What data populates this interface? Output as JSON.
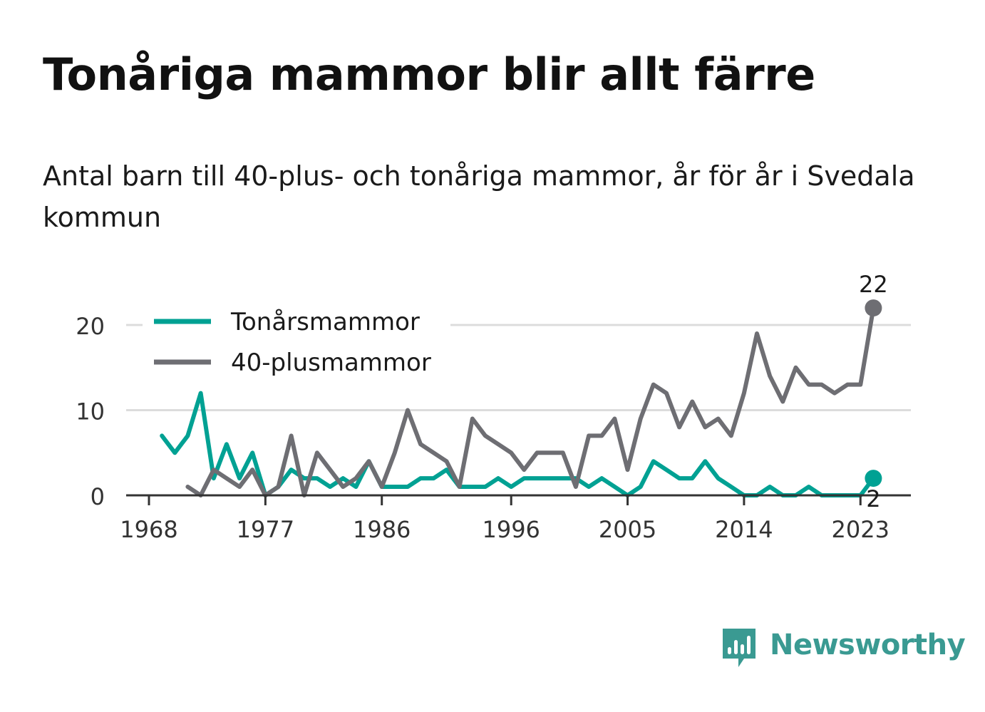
{
  "title": "Tonåriga mammor blir allt färre",
  "subtitle": "Antal barn till 40-plus- och tonåriga mammor, år för år i Svedala kommun",
  "brand": {
    "name": "Newsworthy",
    "logo_icon": "bar-chart-speech-bubble-icon",
    "color": "#3a9a92"
  },
  "chart_data": {
    "type": "line",
    "title": "Tonåriga mammor blir allt färre",
    "subtitle": "Antal barn till 40-plus- och tonåriga mammor, år för år i Svedala kommun",
    "xlabel": "",
    "ylabel": "",
    "xlim": [
      1968,
      2025
    ],
    "ylim": [
      0,
      22
    ],
    "x_ticks": [
      1968,
      1977,
      1986,
      1996,
      2005,
      2014,
      2023
    ],
    "y_ticks": [
      0,
      10,
      20
    ],
    "grid": true,
    "legend_position": "top-left",
    "series": [
      {
        "name": "Tonårsmammor",
        "color": "#00a193",
        "start_year": 1969,
        "values": [
          7,
          5,
          7,
          12,
          2,
          6,
          2,
          5,
          0,
          1,
          3,
          2,
          2,
          1,
          2,
          1,
          4,
          1,
          1,
          1,
          2,
          2,
          3,
          1,
          1,
          1,
          2,
          1,
          2,
          2,
          2,
          2,
          2,
          1,
          2,
          1,
          0,
          1,
          4,
          3,
          2,
          2,
          4,
          2,
          1,
          0,
          0,
          1,
          0,
          0,
          1,
          0,
          0,
          0,
          0,
          2
        ],
        "end_label": "2"
      },
      {
        "name": "40-plusmammor",
        "color": "#6e6e73",
        "start_year": 1971,
        "values": [
          1,
          0,
          3,
          2,
          1,
          3,
          0,
          1,
          7,
          0,
          5,
          3,
          1,
          2,
          4,
          1,
          5,
          10,
          6,
          5,
          4,
          1,
          9,
          7,
          6,
          5,
          3,
          5,
          5,
          5,
          1,
          7,
          7,
          9,
          3,
          9,
          13,
          12,
          8,
          11,
          8,
          9,
          7,
          12,
          19,
          14,
          11,
          15,
          13,
          13,
          12,
          13,
          13,
          22
        ],
        "end_label": "22"
      }
    ]
  }
}
